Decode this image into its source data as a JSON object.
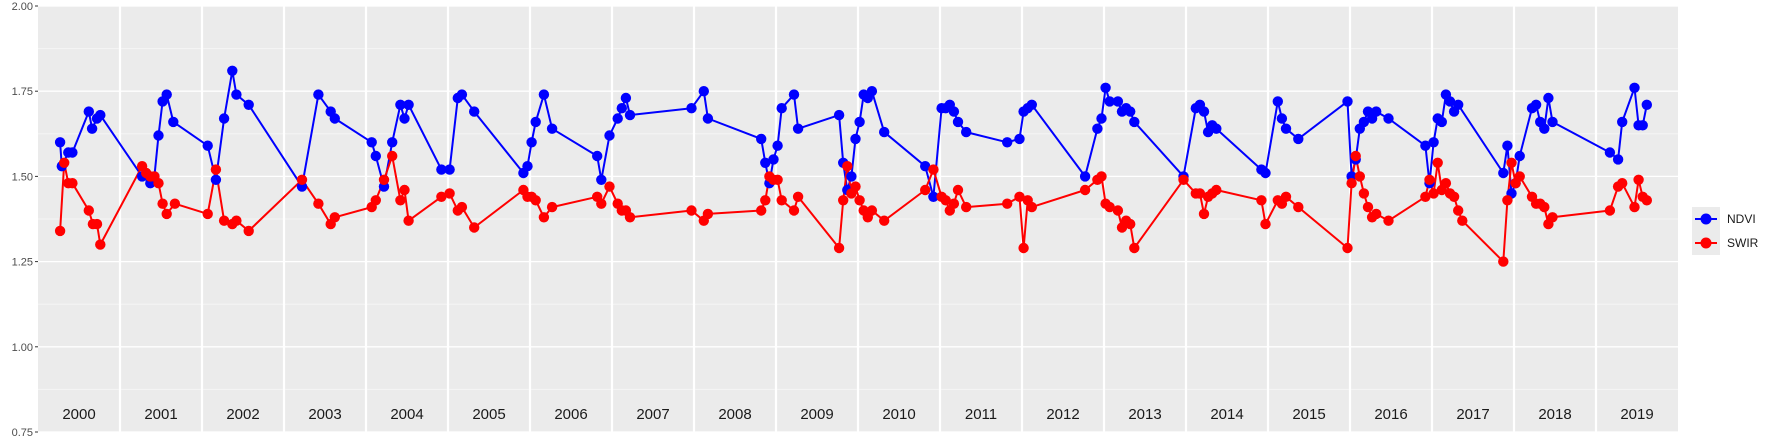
{
  "chart_data": {
    "type": "line",
    "ylim": [
      0.75,
      2.0
    ],
    "y_ticks": [
      0.75,
      1.0,
      1.25,
      1.5,
      1.75,
      2.0
    ],
    "y_tick_labels": [
      "0.75",
      "1.00",
      "1.25",
      "1.50",
      "1.75",
      "2.00"
    ],
    "grid": true,
    "legend_position": "right",
    "panels": [
      "2000",
      "2001",
      "2002",
      "2003",
      "2004",
      "2005",
      "2006",
      "2007",
      "2008",
      "2009",
      "2010",
      "2011",
      "2012",
      "2013",
      "2014",
      "2015",
      "2016",
      "2017",
      "2018",
      "2019"
    ],
    "series": [
      {
        "name": "NDVI",
        "color": "#0000FF",
        "points": [
          [
            0.27,
            1.6
          ],
          [
            0.29,
            1.53
          ],
          [
            0.37,
            1.57
          ],
          [
            0.42,
            1.57
          ],
          [
            0.62,
            1.69
          ],
          [
            0.66,
            1.64
          ],
          [
            0.72,
            1.67
          ],
          [
            0.76,
            1.68
          ],
          [
            1.27,
            1.5
          ],
          [
            1.37,
            1.48
          ],
          [
            1.42,
            1.5
          ],
          [
            1.47,
            1.62
          ],
          [
            1.52,
            1.72
          ],
          [
            1.57,
            1.74
          ],
          [
            1.65,
            1.66
          ],
          [
            2.07,
            1.59
          ],
          [
            2.17,
            1.49
          ],
          [
            2.27,
            1.67
          ],
          [
            2.37,
            1.81
          ],
          [
            2.42,
            1.74
          ],
          [
            2.57,
            1.71
          ],
          [
            3.22,
            1.47
          ],
          [
            3.42,
            1.74
          ],
          [
            3.57,
            1.69
          ],
          [
            3.62,
            1.67
          ],
          [
            4.07,
            1.6
          ],
          [
            4.12,
            1.56
          ],
          [
            4.22,
            1.47
          ],
          [
            4.32,
            1.6
          ],
          [
            4.42,
            1.71
          ],
          [
            4.47,
            1.67
          ],
          [
            4.52,
            1.71
          ],
          [
            4.92,
            1.52
          ],
          [
            5.02,
            1.52
          ],
          [
            5.12,
            1.73
          ],
          [
            5.17,
            1.74
          ],
          [
            5.32,
            1.69
          ],
          [
            5.92,
            1.51
          ],
          [
            5.97,
            1.53
          ],
          [
            6.02,
            1.6
          ],
          [
            6.07,
            1.66
          ],
          [
            6.17,
            1.74
          ],
          [
            6.27,
            1.64
          ],
          [
            6.82,
            1.56
          ],
          [
            6.87,
            1.49
          ],
          [
            6.97,
            1.62
          ],
          [
            7.07,
            1.67
          ],
          [
            7.12,
            1.7
          ],
          [
            7.17,
            1.73
          ],
          [
            7.22,
            1.68
          ],
          [
            7.97,
            1.7
          ],
          [
            8.12,
            1.75
          ],
          [
            8.17,
            1.67
          ],
          [
            8.82,
            1.61
          ],
          [
            8.87,
            1.54
          ],
          [
            8.92,
            1.48
          ],
          [
            8.97,
            1.55
          ],
          [
            9.02,
            1.59
          ],
          [
            9.07,
            1.7
          ],
          [
            9.22,
            1.74
          ],
          [
            9.27,
            1.64
          ],
          [
            9.77,
            1.68
          ],
          [
            9.82,
            1.54
          ],
          [
            9.87,
            1.46
          ],
          [
            9.92,
            1.5
          ],
          [
            9.97,
            1.61
          ],
          [
            10.02,
            1.66
          ],
          [
            10.07,
            1.74
          ],
          [
            10.12,
            1.73
          ],
          [
            10.17,
            1.75
          ],
          [
            10.32,
            1.63
          ],
          [
            10.82,
            1.53
          ],
          [
            10.92,
            1.44
          ],
          [
            11.02,
            1.7
          ],
          [
            11.07,
            1.7
          ],
          [
            11.12,
            1.71
          ],
          [
            11.17,
            1.69
          ],
          [
            11.22,
            1.66
          ],
          [
            11.32,
            1.63
          ],
          [
            11.82,
            1.6
          ],
          [
            11.97,
            1.61
          ],
          [
            12.02,
            1.69
          ],
          [
            12.07,
            1.7
          ],
          [
            12.12,
            1.71
          ],
          [
            12.77,
            1.5
          ],
          [
            12.92,
            1.64
          ],
          [
            12.97,
            1.67
          ],
          [
            13.02,
            1.76
          ],
          [
            13.07,
            1.72
          ],
          [
            13.17,
            1.72
          ],
          [
            13.22,
            1.69
          ],
          [
            13.27,
            1.7
          ],
          [
            13.32,
            1.69
          ],
          [
            13.37,
            1.66
          ],
          [
            13.97,
            1.5
          ],
          [
            14.12,
            1.7
          ],
          [
            14.17,
            1.71
          ],
          [
            14.22,
            1.69
          ],
          [
            14.27,
            1.63
          ],
          [
            14.32,
            1.65
          ],
          [
            14.37,
            1.64
          ],
          [
            14.92,
            1.52
          ],
          [
            14.97,
            1.51
          ],
          [
            15.12,
            1.72
          ],
          [
            15.17,
            1.67
          ],
          [
            15.22,
            1.64
          ],
          [
            15.37,
            1.61
          ],
          [
            15.97,
            1.72
          ],
          [
            16.02,
            1.5
          ],
          [
            16.07,
            1.55
          ],
          [
            16.12,
            1.64
          ],
          [
            16.17,
            1.66
          ],
          [
            16.22,
            1.69
          ],
          [
            16.27,
            1.67
          ],
          [
            16.32,
            1.69
          ],
          [
            16.47,
            1.67
          ],
          [
            16.92,
            1.59
          ],
          [
            16.97,
            1.48
          ],
          [
            17.02,
            1.6
          ],
          [
            17.07,
            1.67
          ],
          [
            17.12,
            1.66
          ],
          [
            17.17,
            1.74
          ],
          [
            17.22,
            1.72
          ],
          [
            17.27,
            1.69
          ],
          [
            17.32,
            1.71
          ],
          [
            17.87,
            1.51
          ],
          [
            17.92,
            1.59
          ],
          [
            17.97,
            1.45
          ],
          [
            18.02,
            1.48
          ],
          [
            18.07,
            1.56
          ],
          [
            18.22,
            1.7
          ],
          [
            18.27,
            1.71
          ],
          [
            18.32,
            1.66
          ],
          [
            18.37,
            1.64
          ],
          [
            18.42,
            1.73
          ],
          [
            18.47,
            1.66
          ],
          [
            19.17,
            1.57
          ],
          [
            19.27,
            1.55
          ],
          [
            19.32,
            1.66
          ],
          [
            19.47,
            1.76
          ],
          [
            19.52,
            1.65
          ],
          [
            19.57,
            1.65
          ],
          [
            19.62,
            1.71
          ]
        ]
      },
      {
        "name": "SWIR",
        "color": "#FF0000",
        "points": [
          [
            0.27,
            1.34
          ],
          [
            0.32,
            1.54
          ],
          [
            0.37,
            1.48
          ],
          [
            0.42,
            1.48
          ],
          [
            0.62,
            1.4
          ],
          [
            0.67,
            1.36
          ],
          [
            0.72,
            1.36
          ],
          [
            0.76,
            1.3
          ],
          [
            1.27,
            1.53
          ],
          [
            1.32,
            1.51
          ],
          [
            1.37,
            1.5
          ],
          [
            1.42,
            1.5
          ],
          [
            1.47,
            1.48
          ],
          [
            1.52,
            1.42
          ],
          [
            1.57,
            1.39
          ],
          [
            1.67,
            1.42
          ],
          [
            2.07,
            1.39
          ],
          [
            2.17,
            1.52
          ],
          [
            2.27,
            1.37
          ],
          [
            2.37,
            1.36
          ],
          [
            2.42,
            1.37
          ],
          [
            2.57,
            1.34
          ],
          [
            3.22,
            1.49
          ],
          [
            3.42,
            1.42
          ],
          [
            3.57,
            1.36
          ],
          [
            3.62,
            1.38
          ],
          [
            4.07,
            1.41
          ],
          [
            4.12,
            1.43
          ],
          [
            4.22,
            1.49
          ],
          [
            4.32,
            1.56
          ],
          [
            4.42,
            1.43
          ],
          [
            4.47,
            1.46
          ],
          [
            4.52,
            1.37
          ],
          [
            4.92,
            1.44
          ],
          [
            5.02,
            1.45
          ],
          [
            5.12,
            1.4
          ],
          [
            5.17,
            1.41
          ],
          [
            5.32,
            1.35
          ],
          [
            5.92,
            1.46
          ],
          [
            5.97,
            1.44
          ],
          [
            6.02,
            1.44
          ],
          [
            6.07,
            1.43
          ],
          [
            6.17,
            1.38
          ],
          [
            6.27,
            1.41
          ],
          [
            6.82,
            1.44
          ],
          [
            6.87,
            1.42
          ],
          [
            6.97,
            1.47
          ],
          [
            7.07,
            1.42
          ],
          [
            7.12,
            1.4
          ],
          [
            7.17,
            1.4
          ],
          [
            7.22,
            1.38
          ],
          [
            7.97,
            1.4
          ],
          [
            8.12,
            1.37
          ],
          [
            8.17,
            1.39
          ],
          [
            8.82,
            1.4
          ],
          [
            8.87,
            1.43
          ],
          [
            8.92,
            1.5
          ],
          [
            8.97,
            1.49
          ],
          [
            9.02,
            1.49
          ],
          [
            9.07,
            1.43
          ],
          [
            9.22,
            1.4
          ],
          [
            9.27,
            1.44
          ],
          [
            9.77,
            1.29
          ],
          [
            9.82,
            1.43
          ],
          [
            9.87,
            1.53
          ],
          [
            9.92,
            1.45
          ],
          [
            9.97,
            1.47
          ],
          [
            10.02,
            1.43
          ],
          [
            10.07,
            1.4
          ],
          [
            10.12,
            1.38
          ],
          [
            10.17,
            1.4
          ],
          [
            10.32,
            1.37
          ],
          [
            10.82,
            1.46
          ],
          [
            10.92,
            1.52
          ],
          [
            11.02,
            1.44
          ],
          [
            11.07,
            1.43
          ],
          [
            11.12,
            1.4
          ],
          [
            11.17,
            1.42
          ],
          [
            11.22,
            1.46
          ],
          [
            11.32,
            1.41
          ],
          [
            11.82,
            1.42
          ],
          [
            11.97,
            1.44
          ],
          [
            12.02,
            1.29
          ],
          [
            12.07,
            1.43
          ],
          [
            12.12,
            1.41
          ],
          [
            12.77,
            1.46
          ],
          [
            12.92,
            1.49
          ],
          [
            12.97,
            1.5
          ],
          [
            13.02,
            1.42
          ],
          [
            13.07,
            1.41
          ],
          [
            13.17,
            1.4
          ],
          [
            13.22,
            1.35
          ],
          [
            13.27,
            1.37
          ],
          [
            13.32,
            1.36
          ],
          [
            13.37,
            1.29
          ],
          [
            13.97,
            1.49
          ],
          [
            14.12,
            1.45
          ],
          [
            14.17,
            1.45
          ],
          [
            14.22,
            1.39
          ],
          [
            14.27,
            1.44
          ],
          [
            14.32,
            1.45
          ],
          [
            14.37,
            1.46
          ],
          [
            14.92,
            1.43
          ],
          [
            14.97,
            1.36
          ],
          [
            15.12,
            1.43
          ],
          [
            15.17,
            1.42
          ],
          [
            15.22,
            1.44
          ],
          [
            15.37,
            1.41
          ],
          [
            15.97,
            1.29
          ],
          [
            16.02,
            1.48
          ],
          [
            16.07,
            1.56
          ],
          [
            16.12,
            1.5
          ],
          [
            16.17,
            1.45
          ],
          [
            16.22,
            1.41
          ],
          [
            16.27,
            1.38
          ],
          [
            16.32,
            1.39
          ],
          [
            16.47,
            1.37
          ],
          [
            16.92,
            1.44
          ],
          [
            16.97,
            1.49
          ],
          [
            17.02,
            1.45
          ],
          [
            17.07,
            1.54
          ],
          [
            17.12,
            1.46
          ],
          [
            17.17,
            1.48
          ],
          [
            17.22,
            1.45
          ],
          [
            17.27,
            1.44
          ],
          [
            17.32,
            1.4
          ],
          [
            17.37,
            1.37
          ],
          [
            17.87,
            1.25
          ],
          [
            17.92,
            1.43
          ],
          [
            17.97,
            1.54
          ],
          [
            18.02,
            1.48
          ],
          [
            18.07,
            1.5
          ],
          [
            18.22,
            1.44
          ],
          [
            18.27,
            1.42
          ],
          [
            18.32,
            1.42
          ],
          [
            18.37,
            1.41
          ],
          [
            18.42,
            1.36
          ],
          [
            18.47,
            1.38
          ],
          [
            19.17,
            1.4
          ],
          [
            19.27,
            1.47
          ],
          [
            19.32,
            1.48
          ],
          [
            19.47,
            1.41
          ],
          [
            19.52,
            1.49
          ],
          [
            19.57,
            1.44
          ],
          [
            19.62,
            1.43
          ]
        ]
      }
    ]
  }
}
